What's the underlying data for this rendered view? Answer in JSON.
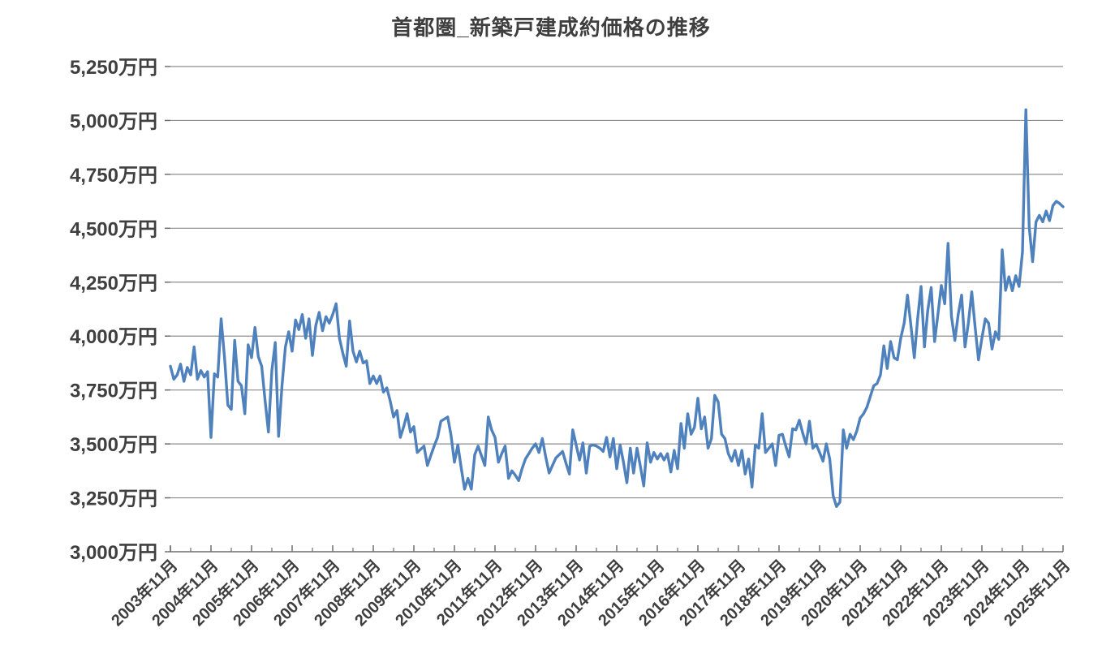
{
  "page": {
    "title": "首都圏_新築戸建成約価格の推移"
  },
  "chart_data": {
    "type": "line",
    "title": "首都圏_新築戸建成約価格の推移",
    "series_name": "新築戸建成約価格",
    "unit": "万円",
    "x_start": "2003-11",
    "x_interval": "monthly",
    "x_tick_labels": [
      "2003年11月",
      "2004年11月",
      "2005年11月",
      "2006年11月",
      "2007年11月",
      "2008年11月",
      "2009年11月",
      "2010年11月",
      "2011年11月",
      "2012年11月",
      "2013年11月",
      "2014年11月",
      "2015年11月",
      "2016年11月",
      "2017年11月",
      "2018年11月",
      "2019年11月",
      "2020年11月",
      "2021年11月",
      "2022年11月",
      "2023年11月",
      "2024年11月",
      "2025年11月"
    ],
    "y_tick_labels": [
      "3,000万円",
      "3,250万円",
      "3,500万円",
      "3,750万円",
      "4,000万円",
      "4,250万円",
      "4,500万円",
      "4,750万円",
      "5,000万円",
      "5,250万円"
    ],
    "ylim": [
      3000,
      5250
    ],
    "y_step": 250,
    "grid": true,
    "legend_position": "none",
    "line_color": "#4F81BD",
    "grid_color": "#8c8c8c",
    "axis_color": "#6e6e6e",
    "text_color": "#3f3f3f",
    "values": [
      3860,
      3800,
      3820,
      3870,
      3790,
      3855,
      3820,
      3950,
      3800,
      3840,
      3810,
      3835,
      3530,
      3825,
      3810,
      4080,
      3900,
      3680,
      3660,
      3980,
      3790,
      3770,
      3640,
      3960,
      3900,
      4040,
      3905,
      3860,
      3700,
      3555,
      3840,
      3970,
      3535,
      3770,
      3950,
      4020,
      3930,
      4075,
      4030,
      4100,
      3990,
      4080,
      3910,
      4050,
      4110,
      4025,
      4090,
      4060,
      4100,
      4150,
      3990,
      3920,
      3860,
      4070,
      3930,
      3880,
      3930,
      3875,
      3885,
      3780,
      3815,
      3780,
      3815,
      3740,
      3760,
      3700,
      3625,
      3655,
      3530,
      3580,
      3640,
      3555,
      3580,
      3460,
      3475,
      3490,
      3400,
      3445,
      3490,
      3530,
      3605,
      3615,
      3625,
      3540,
      3415,
      3495,
      3390,
      3290,
      3340,
      3290,
      3450,
      3490,
      3445,
      3400,
      3625,
      3565,
      3530,
      3415,
      3455,
      3490,
      3340,
      3375,
      3355,
      3330,
      3385,
      3430,
      3455,
      3480,
      3500,
      3460,
      3525,
      3440,
      3365,
      3400,
      3435,
      3450,
      3465,
      3410,
      3360,
      3565,
      3495,
      3425,
      3505,
      3365,
      3490,
      3495,
      3490,
      3480,
      3465,
      3530,
      3440,
      3525,
      3385,
      3495,
      3415,
      3320,
      3480,
      3365,
      3480,
      3395,
      3305,
      3505,
      3415,
      3460,
      3430,
      3455,
      3425,
      3455,
      3370,
      3470,
      3385,
      3595,
      3480,
      3640,
      3545,
      3577,
      3712,
      3570,
      3625,
      3480,
      3525,
      3725,
      3695,
      3545,
      3525,
      3455,
      3420,
      3470,
      3400,
      3470,
      3360,
      3430,
      3300,
      3495,
      3480,
      3640,
      3460,
      3480,
      3500,
      3400,
      3540,
      3545,
      3490,
      3440,
      3570,
      3565,
      3610,
      3550,
      3500,
      3605,
      3480,
      3498,
      3460,
      3420,
      3500,
      3430,
      3260,
      3210,
      3230,
      3565,
      3480,
      3545,
      3520,
      3560,
      3620,
      3640,
      3670,
      3720,
      3770,
      3780,
      3820,
      3955,
      3850,
      3975,
      3900,
      3890,
      3990,
      4060,
      4190,
      4050,
      3900,
      4080,
      4230,
      3950,
      4120,
      4225,
      3975,
      4100,
      4235,
      4150,
      4430,
      4090,
      3980,
      4100,
      4190,
      3950,
      4060,
      4205,
      4040,
      3890,
      3990,
      4080,
      4060,
      3940,
      4020,
      3985,
      4400,
      4212,
      4275,
      4210,
      4280,
      4230,
      4390,
      5050,
      4505,
      4345,
      4530,
      4560,
      4530,
      4580,
      4535,
      4605,
      4625,
      4615,
      4600
    ]
  }
}
